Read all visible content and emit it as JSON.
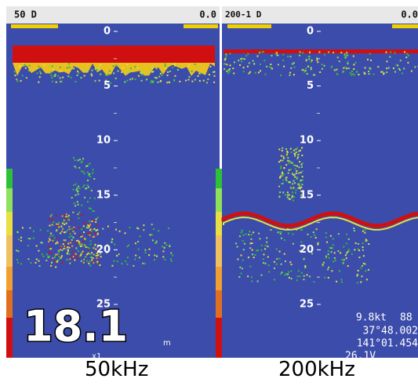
{
  "left_panel": {
    "header": "50 D",
    "gain": "0.0",
    "depth_scale": [
      0,
      5,
      10,
      15,
      20,
      25
    ],
    "depth": "18.1",
    "depth_unit": "m",
    "zoom": "x1",
    "caption": "50kHz"
  },
  "right_panel": {
    "header": "200-1 D",
    "gain": "0.0",
    "depth_scale": [
      0,
      5,
      10,
      15,
      20,
      25
    ],
    "speed": "9.8kt",
    "heading": "88",
    "latitude": "37°48.002",
    "longitude": "141°01.454",
    "voltage": "26.1V",
    "caption": "200kHz"
  }
}
